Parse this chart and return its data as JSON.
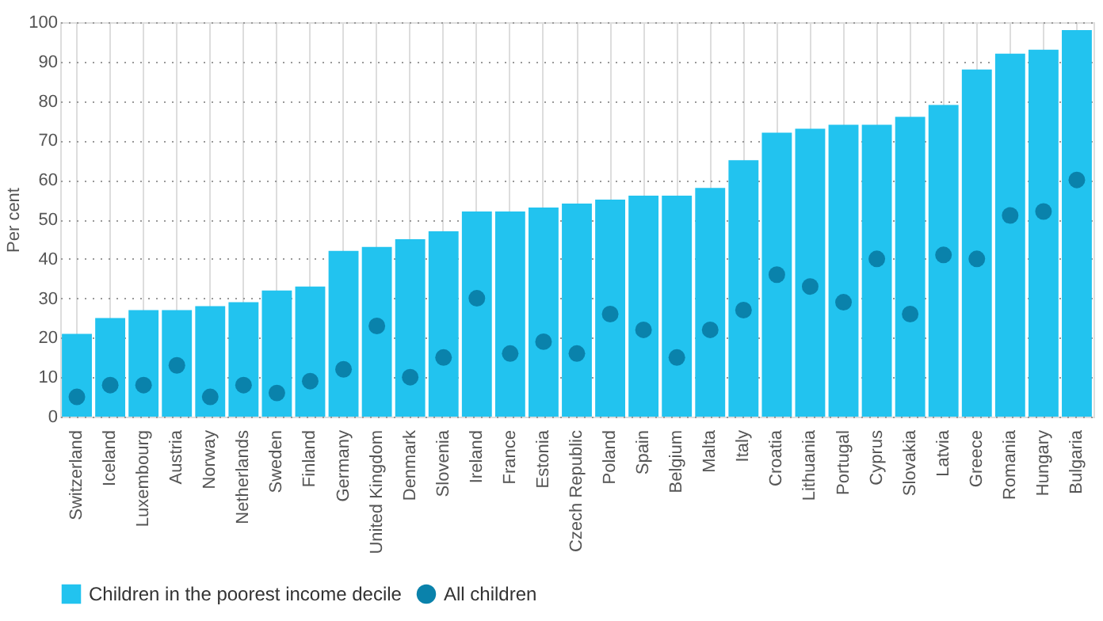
{
  "chart_data": {
    "type": "bar",
    "ylabel": "Per cent",
    "categories": [
      "Switzerland",
      "Iceland",
      "Luxembourg",
      "Austria",
      "Norway",
      "Netherlands",
      "Sweden",
      "Finland",
      "Germany",
      "United Kingdom",
      "Denmark",
      "Slovenia",
      "Ireland",
      "France",
      "Estonia",
      "Czech Republic",
      "Poland",
      "Spain",
      "Belgium",
      "Malta",
      "Italy",
      "Croatia",
      "Lithuania",
      "Portugal",
      "Cyprus",
      "Slovakia",
      "Latvia",
      "Greece",
      "Romania",
      "Hungary",
      "Bulgaria"
    ],
    "series": [
      {
        "name": "Children in the poorest income decile",
        "color": "#22c3ef",
        "values": [
          21,
          25,
          27,
          27,
          28,
          29,
          32,
          33,
          42,
          43,
          45,
          47,
          52,
          52,
          53,
          54,
          55,
          56,
          56,
          58,
          65,
          72,
          73,
          74,
          74,
          76,
          79,
          88,
          92,
          93,
          98
        ]
      },
      {
        "name": "All children",
        "type": "scatter",
        "color": "#0a82ab",
        "values": [
          5,
          8,
          8,
          13,
          5,
          8,
          6,
          9,
          12,
          23,
          10,
          15,
          30,
          16,
          19,
          16,
          26,
          22,
          15,
          22,
          27,
          36,
          33,
          29,
          40,
          26,
          41,
          40,
          51,
          52,
          60
        ]
      }
    ],
    "ylim": [
      0,
      100
    ],
    "yticks": [
      0,
      10,
      20,
      30,
      40,
      50,
      60,
      70,
      80,
      90,
      100
    ],
    "grid": true,
    "legend": "bottom",
    "marker": "circle"
  }
}
